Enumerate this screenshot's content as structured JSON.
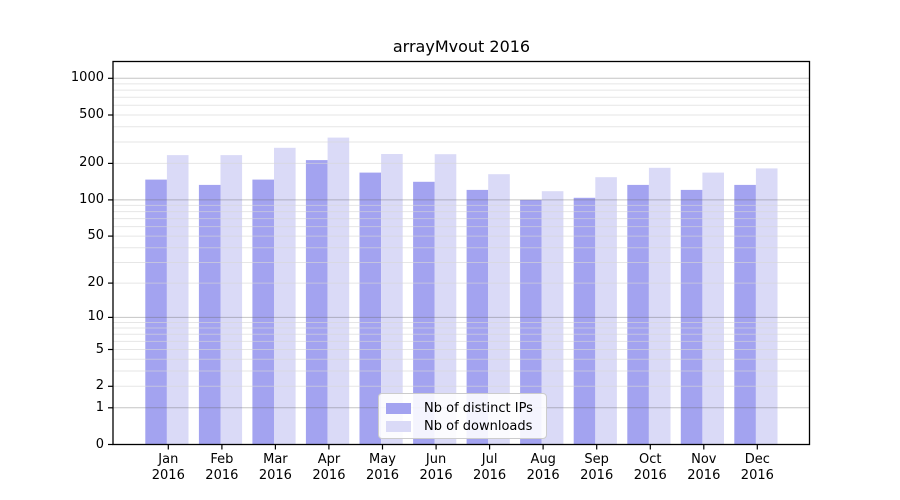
{
  "title": "arrayMvout 2016",
  "legend": {
    "items": [
      {
        "label": "Nb of distinct IPs",
        "color": "#a3a3f0"
      },
      {
        "label": "Nb of downloads",
        "color": "#dadaf7"
      }
    ]
  },
  "chart_data": {
    "type": "bar",
    "title": "arrayMvout 2016",
    "xlabel": "",
    "ylabel": "",
    "yscale": "log1p",
    "ylim": [
      0,
      1372
    ],
    "grid": "on",
    "legend_position": "lower center",
    "categories": [
      "Jan",
      "Feb",
      "Mar",
      "Apr",
      "May",
      "Jun",
      "Jul",
      "Aug",
      "Sep",
      "Oct",
      "Nov",
      "Dec"
    ],
    "category_year": "2016",
    "y_ticks": [
      0,
      1,
      2,
      5,
      10,
      20,
      50,
      100,
      200,
      500,
      1000
    ],
    "series": [
      {
        "name": "Nb of distinct IPs",
        "color": "#a3a3f0",
        "values": [
          147,
          133,
          147,
          213,
          168,
          141,
          121,
          100,
          104,
          133,
          121,
          133
        ]
      },
      {
        "name": "Nb of downloads",
        "color": "#dadaf7",
        "values": [
          234,
          234,
          269,
          326,
          239,
          238,
          163,
          118,
          154,
          184,
          168,
          182
        ]
      }
    ]
  },
  "colors": {
    "background": "#ffffff",
    "bar_ips": "#a3a3f0",
    "bar_downloads": "#dadaf7",
    "grid_minor": "#ececec",
    "grid_major": "#c6c6c6",
    "axis": "#000000"
  }
}
